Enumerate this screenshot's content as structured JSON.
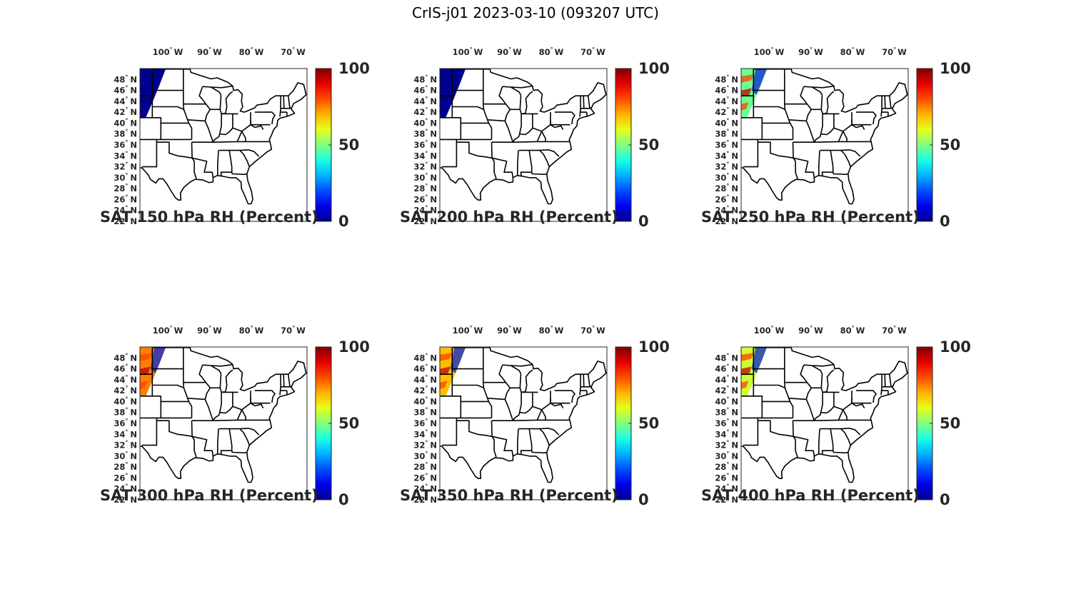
{
  "figure": {
    "title": "CrIS-j01 2023-03-10 (093207 UTC)"
  },
  "map_axes": {
    "lon_ticks": [
      {
        "value": -100,
        "label": "100",
        "hemi": "W"
      },
      {
        "value": -90,
        "label": "90",
        "hemi": "W"
      },
      {
        "value": -80,
        "label": "80",
        "hemi": "W"
      },
      {
        "value": -70,
        "label": "70",
        "hemi": "W"
      }
    ],
    "lat_ticks": [
      {
        "value": 48,
        "label": "48",
        "hemi": "N"
      },
      {
        "value": 46,
        "label": "46",
        "hemi": "N"
      },
      {
        "value": 44,
        "label": "44",
        "hemi": "N"
      },
      {
        "value": 42,
        "label": "42",
        "hemi": "N"
      },
      {
        "value": 40,
        "label": "40",
        "hemi": "N"
      },
      {
        "value": 38,
        "label": "38",
        "hemi": "N"
      },
      {
        "value": 36,
        "label": "36",
        "hemi": "N"
      },
      {
        "value": 34,
        "label": "34",
        "hemi": "N"
      },
      {
        "value": 32,
        "label": "32",
        "hemi": "N"
      },
      {
        "value": 30,
        "label": "30",
        "hemi": "N"
      },
      {
        "value": 28,
        "label": "28",
        "hemi": "N"
      },
      {
        "value": 26,
        "label": "26",
        "hemi": "N"
      },
      {
        "value": 24,
        "label": "24",
        "hemi": "N"
      },
      {
        "value": 22,
        "label": "22",
        "hemi": "N"
      }
    ],
    "degree_symbol": "°",
    "lon_range": [
      -107,
      -67
    ],
    "lat_range": [
      22,
      50
    ]
  },
  "colorbar": {
    "colormap": "jet",
    "range": [
      0,
      100
    ],
    "ticks": [
      {
        "value": 100,
        "label": "100"
      },
      {
        "value": 50,
        "label": "50"
      },
      {
        "value": 0,
        "label": "0"
      }
    ]
  },
  "panels": [
    {
      "id": "p150",
      "title": "SAT 150 hPa RH (Percent)",
      "level_hpa": 150,
      "swath_color": "#00008f"
    },
    {
      "id": "p200",
      "title": "SAT 200 hPa RH (Percent)",
      "level_hpa": 200,
      "swath_color": "#00008f"
    },
    {
      "id": "p250",
      "title": "SAT 250 hPa RH (Percent)",
      "level_hpa": 250,
      "swath_color": "#6fff8f"
    },
    {
      "id": "p300",
      "title": "SAT 300 hPa RH (Percent)",
      "level_hpa": 300,
      "swath_color": "#ff8000"
    },
    {
      "id": "p350",
      "title": "SAT 350 hPa RH (Percent)",
      "level_hpa": 350,
      "swath_color": "#ffbf00"
    },
    {
      "id": "p400",
      "title": "SAT 400 hPa RH (Percent)",
      "level_hpa": 400,
      "swath_color": "#cfff30"
    }
  ]
}
